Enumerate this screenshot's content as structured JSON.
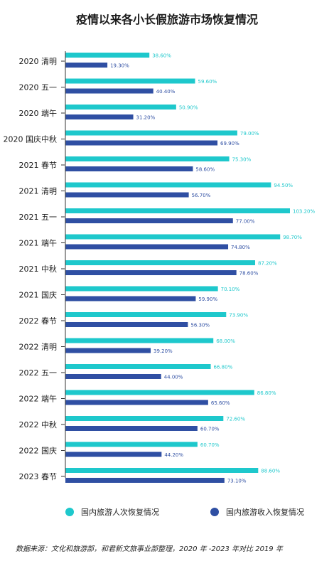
{
  "chart_data": {
    "type": "bar",
    "orientation": "horizontal",
    "title": "疫情以来各小长假旅游市场恢复情况",
    "categories": [
      "2020 清明",
      "2020 五一",
      "2020 端午",
      "2020 国庆中秋",
      "2021 春节",
      "2021 清明",
      "2021 五一",
      "2021 端午",
      "2021 中秋",
      "2021 国庆",
      "2022 春节",
      "2022 清明",
      "2022 五一",
      "2022 端午",
      "2022 中秋",
      "2022 国庆",
      "2023 春节"
    ],
    "series": [
      {
        "name": "国内旅游人次恢复情况",
        "color": "#1ec8cc",
        "values": [
          38.6,
          59.6,
          50.9,
          79.0,
          75.3,
          94.5,
          103.2,
          98.7,
          87.2,
          70.1,
          73.9,
          68.0,
          66.8,
          86.8,
          72.6,
          60.7,
          88.6
        ],
        "labels": [
          "38.60%",
          "59.60%",
          "50.90%",
          "79.00%",
          "75.30%",
          "94.50%",
          "103.20%",
          "98.70%",
          "87.20%",
          "70.10%",
          "73.90%",
          "68.00%",
          "66.80%",
          "86.80%",
          "72.60%",
          "60.70%",
          "88.60%"
        ]
      },
      {
        "name": "国内旅游收入恢复情况",
        "color": "#2f4fa3",
        "values": [
          19.3,
          40.4,
          31.2,
          69.9,
          58.6,
          56.7,
          77.0,
          74.8,
          78.6,
          59.9,
          56.3,
          39.2,
          44.0,
          65.6,
          60.7,
          44.2,
          73.1
        ],
        "labels": [
          "19.30%",
          "40.40%",
          "31.20%",
          "69.90%",
          "58.60%",
          "56.70%",
          "77.00%",
          "74.80%",
          "78.60%",
          "59.90%",
          "56.30%",
          "39.20%",
          "44.00%",
          "65.60%",
          "60.70%",
          "44.20%",
          "73.10%"
        ]
      }
    ],
    "xlim": [
      0,
      103.2
    ],
    "grid": false,
    "legend_position": "bottom"
  },
  "legend": {
    "item1": "国内旅游人次恢复情况",
    "item2": "国内旅游收入恢复情况"
  },
  "source": "数据来源：文化和旅游部，和君新文旅事业部整理，2020 年 -2023 年对比 2019 年"
}
